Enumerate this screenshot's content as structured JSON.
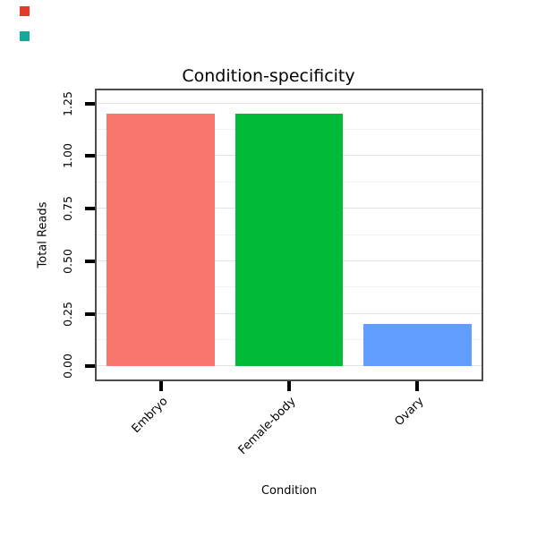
{
  "figure": {
    "background": "#ffffff"
  },
  "chart_data": {
    "type": "bar",
    "title": "Condition-specificity",
    "xlabel": "Condition",
    "ylabel": "Total Reads",
    "categories": [
      "Embryo",
      "Female-body",
      "Ovary"
    ],
    "values": [
      1.2,
      1.2,
      0.2
    ],
    "bar_colors": [
      "#F8766D",
      "#00BA38",
      "#619CFF"
    ],
    "yticks": [
      0,
      0.25,
      0.5,
      0.75,
      1,
      1.25
    ],
    "ytick_labels": [
      "0.00",
      "0.25",
      "0.50",
      "0.75",
      "1.00",
      "1.25"
    ],
    "ylim": [
      0,
      1.25
    ],
    "grid": "horizontal major and minor gridlines",
    "legend_position": "none",
    "panel_border_color": "#4d4d4d",
    "grid_major_color": "#e2e2e2",
    "grid_minor_color": "#f1f1f1",
    "tick_color": "#000000"
  },
  "artifacts": {
    "top_left_red": "#e23b2e",
    "top_left_teal": "#18a79b"
  }
}
